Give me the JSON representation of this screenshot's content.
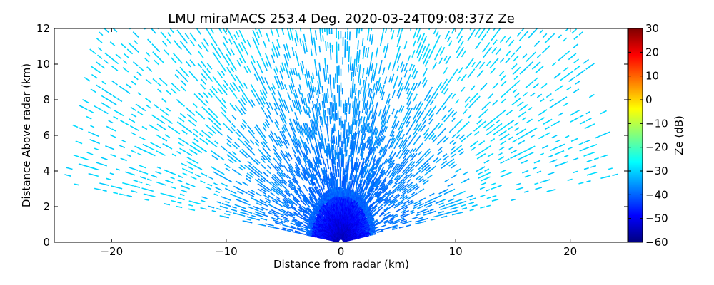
{
  "chart_data": {
    "type": "heatmap",
    "title": "LMU miraMACS 253.4 Deg. 2020-03-24T09:08:37Z  Ze",
    "xlabel": "Distance from radar (km)",
    "ylabel": "Distance Above radar  (km)",
    "xlim": [
      -25,
      25
    ],
    "ylim": [
      0,
      12
    ],
    "xticks": [
      -20,
      -10,
      0,
      10,
      20
    ],
    "yticks": [
      0,
      2,
      4,
      6,
      8,
      10,
      12
    ],
    "colorbar": {
      "label": "Ze (dB)",
      "range": [
        -60,
        30
      ],
      "ticks": [
        -60,
        -50,
        -40,
        -30,
        -20,
        -10,
        0,
        10,
        20,
        30
      ],
      "colormap": "jet",
      "colors": [
        "#00007f",
        "#0000ff",
        "#007fff",
        "#00ffff",
        "#7fff7f",
        "#ffff00",
        "#ff7f00",
        "#ff0000",
        "#7f0000"
      ]
    },
    "scan": {
      "pattern": "RHI",
      "max_range_km": 24,
      "elevation_deg_min": 9,
      "elevation_deg_max": 172,
      "ze_dB_near_radar": -55,
      "ze_dB_mid_range": -40,
      "ze_dB_far_range": -30
    }
  }
}
